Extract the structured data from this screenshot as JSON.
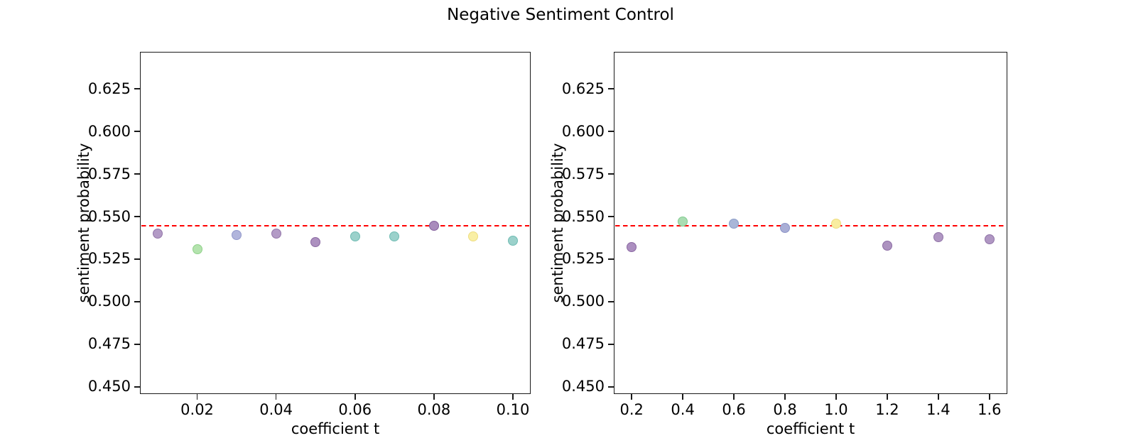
{
  "title": "Negative Sentiment Control",
  "chart_data": [
    {
      "type": "scatter",
      "name": "left-panel",
      "xlabel": "coefficient t",
      "ylabel": "sentiment probability",
      "xlim": [
        0.0055,
        0.1045
      ],
      "ylim": [
        0.4458,
        0.6467
      ],
      "xticks": [
        0.02,
        0.04,
        0.06,
        0.08,
        0.1
      ],
      "xtick_labels": [
        "0.02",
        "0.04",
        "0.06",
        "0.08",
        "0.10"
      ],
      "yticks": [
        0.45,
        0.475,
        0.5,
        0.525,
        0.55,
        0.575,
        0.6,
        0.625
      ],
      "ytick_labels": [
        "0.450",
        "0.475",
        "0.500",
        "0.525",
        "0.550",
        "0.575",
        "0.600",
        "0.625"
      ],
      "grid": false,
      "legend": "none",
      "reference_line": {
        "y": 0.5445,
        "color": "#ff0000",
        "style": "dashed"
      },
      "points": [
        {
          "x": 0.01,
          "y": 0.54,
          "color": "#b39bc6",
          "edge": "#9376a9"
        },
        {
          "x": 0.02,
          "y": 0.531,
          "color": "#b4e3ae",
          "edge": "#8fd189"
        },
        {
          "x": 0.03,
          "y": 0.539,
          "color": "#b1b5dc",
          "edge": "#9298cb"
        },
        {
          "x": 0.04,
          "y": 0.54,
          "color": "#b39bc6",
          "edge": "#9376a9"
        },
        {
          "x": 0.05,
          "y": 0.535,
          "color": "#ac90bf",
          "edge": "#8a68a2"
        },
        {
          "x": 0.06,
          "y": 0.5385,
          "color": "#9bd1cb",
          "edge": "#70bcb3"
        },
        {
          "x": 0.07,
          "y": 0.5385,
          "color": "#9bd1cb",
          "edge": "#70bcb3"
        },
        {
          "x": 0.08,
          "y": 0.5445,
          "color": "#a98bbc",
          "edge": "#84619d"
        },
        {
          "x": 0.09,
          "y": 0.5385,
          "color": "#f9efa5",
          "edge": "#eedd80"
        },
        {
          "x": 0.1,
          "y": 0.536,
          "color": "#9bd1cb",
          "edge": "#70bcb3"
        }
      ]
    },
    {
      "type": "scatter",
      "name": "right-panel",
      "xlabel": "coefficient t",
      "ylabel": "sentiment probability",
      "xlim": [
        0.13,
        1.67
      ],
      "ylim": [
        0.4458,
        0.6467
      ],
      "xticks": [
        0.2,
        0.4,
        0.6,
        0.8,
        1.0,
        1.2,
        1.4,
        1.6
      ],
      "xtick_labels": [
        "0.2",
        "0.4",
        "0.6",
        "0.8",
        "1.0",
        "1.2",
        "1.4",
        "1.6"
      ],
      "yticks": [
        0.45,
        0.475,
        0.5,
        0.525,
        0.55,
        0.575,
        0.6,
        0.625
      ],
      "ytick_labels": [
        "0.450",
        "0.475",
        "0.500",
        "0.525",
        "0.550",
        "0.575",
        "0.600",
        "0.625"
      ],
      "grid": false,
      "legend": "none",
      "reference_line": {
        "y": 0.5445,
        "color": "#ff0000",
        "style": "dashed"
      },
      "points": [
        {
          "x": 0.2,
          "y": 0.532,
          "color": "#ac8fc0",
          "edge": "#8a68a2"
        },
        {
          "x": 0.4,
          "y": 0.547,
          "color": "#aaddb2",
          "edge": "#82cb90"
        },
        {
          "x": 0.6,
          "y": 0.546,
          "color": "#a9b6d8",
          "edge": "#8a9cc7"
        },
        {
          "x": 0.8,
          "y": 0.5435,
          "color": "#a9aed6",
          "edge": "#8b93c6"
        },
        {
          "x": 1.0,
          "y": 0.546,
          "color": "#f9eda0",
          "edge": "#eedd80"
        },
        {
          "x": 1.2,
          "y": 0.533,
          "color": "#ad93c0",
          "edge": "#8c6ca4"
        },
        {
          "x": 1.4,
          "y": 0.538,
          "color": "#b097c3",
          "edge": "#9073a7"
        },
        {
          "x": 1.6,
          "y": 0.5365,
          "color": "#b097c3",
          "edge": "#9073a7"
        }
      ]
    }
  ]
}
